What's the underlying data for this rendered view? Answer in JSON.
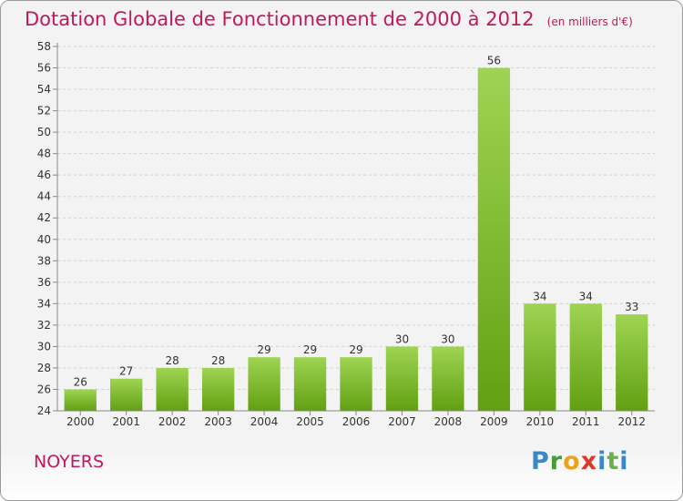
{
  "header": {
    "title": "Dotation Globale de Fonctionnement de 2000 à 2012",
    "unit": "(en milliers d'€)"
  },
  "footer": {
    "commune": "NOYERS",
    "logo_text": "Proxiti"
  },
  "colors": {
    "title": "#c2185b",
    "bar_top": "#9ed452",
    "bar_bottom": "#62a012",
    "axis": "#888888",
    "grid": "#d2d2d2",
    "background": "#f3f3f3"
  },
  "chart_data": {
    "type": "bar",
    "title": "Dotation Globale de Fonctionnement de 2000 à 2012",
    "subtitle": "(en milliers d'€)",
    "xlabel": "",
    "ylabel": "",
    "categories": [
      "2000",
      "2001",
      "2002",
      "2003",
      "2004",
      "2005",
      "2006",
      "2007",
      "2008",
      "2009",
      "2010",
      "2011",
      "2012"
    ],
    "values": [
      26,
      27,
      28,
      28,
      29,
      29,
      29,
      30,
      30,
      56,
      34,
      34,
      33
    ],
    "ylim": [
      24,
      58
    ],
    "yticks": [
      24,
      26,
      28,
      30,
      32,
      34,
      36,
      38,
      40,
      42,
      44,
      46,
      48,
      50,
      52,
      54,
      56,
      58
    ],
    "grid": "horizontal dashed",
    "legend": "none",
    "data_labels": true
  }
}
